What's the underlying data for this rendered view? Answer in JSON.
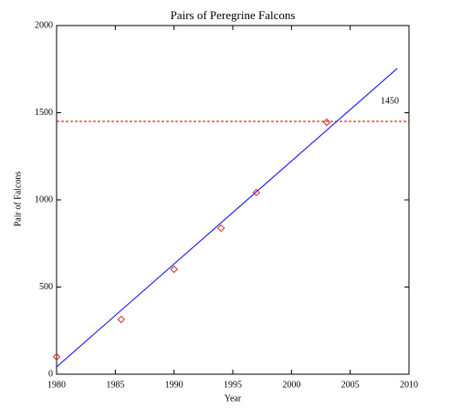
{
  "chart_data": {
    "type": "scatter",
    "title": "Pairs of Peregrine Falcons",
    "x_label": "Year",
    "y_label": "Pair of Falcons",
    "points": {
      "x": [
        1980,
        1985.5,
        1990,
        1994,
        1997,
        2003
      ],
      "values": [
        100,
        314,
        602,
        838,
        1042,
        1445
      ],
      "color": "#d62728"
    },
    "fit": {
      "x": [
        1980,
        2009
      ],
      "values": [
        42,
        1754
      ],
      "color": "#0000ff"
    },
    "reference_line": 1450,
    "reference_color": "#cc0000",
    "xlim": [
      1980,
      2010
    ],
    "xticks": [
      1980,
      1985,
      1990,
      1995,
      2000,
      2005,
      2010
    ],
    "ylim": [
      0,
      2000
    ],
    "yticks": [
      0,
      500,
      1000,
      1500,
      2000
    ]
  }
}
